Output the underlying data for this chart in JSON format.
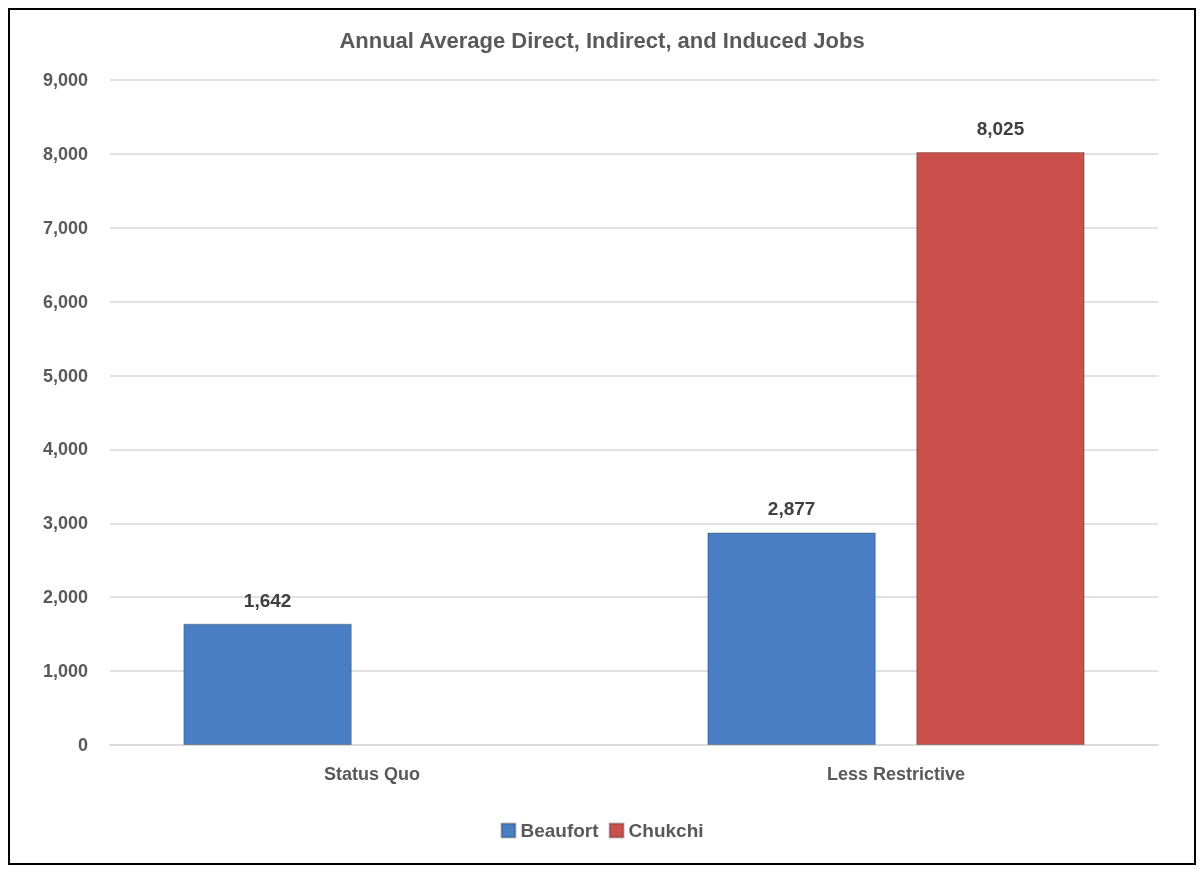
{
  "chart_data": {
    "type": "bar",
    "title": "Annual Average Direct, Indirect, and Induced Jobs",
    "categories": [
      "Status Quo",
      "Less Restrictive"
    ],
    "series": [
      {
        "name": "Beaufort",
        "color": "#4a7ec4",
        "values": [
          1642,
          2877
        ],
        "value_labels": [
          "1,642",
          "2,877"
        ]
      },
      {
        "name": "Chukchi",
        "color": "#c9504b",
        "values": [
          null,
          8025
        ],
        "value_labels": [
          null,
          "8,025"
        ]
      }
    ],
    "ylim": [
      0,
      9000
    ],
    "yticks": [
      0,
      {
        "value": 1000,
        "label": "1,000"
      },
      {
        "value": 2000,
        "label": "2,000"
      },
      {
        "value": 3000,
        "label": "3,000"
      },
      {
        "value": 4000,
        "label": "4,000"
      },
      {
        "value": 5000,
        "label": "5,000"
      },
      {
        "value": 6000,
        "label": "6,000"
      },
      {
        "value": 7000,
        "label": "7,000"
      },
      {
        "value": 8000,
        "label": "8,000"
      },
      {
        "value": 9000,
        "label": "9,000"
      }
    ],
    "grid": "y",
    "legend": "bottom"
  }
}
